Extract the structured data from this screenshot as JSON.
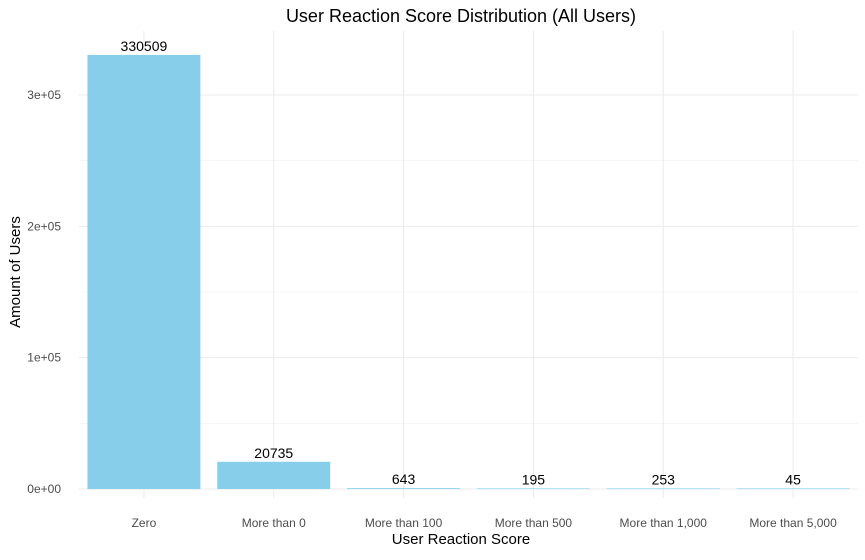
{
  "chart_data": {
    "type": "bar",
    "title": "User Reaction Score Distribution (All Users)",
    "xlabel": "User Reaction Score",
    "ylabel": "Amount of Users",
    "categories": [
      "Zero",
      "More than 0",
      "More than 100",
      "More than 500",
      "More than 1,000",
      "More than 5,000"
    ],
    "values": [
      330509,
      20735,
      643,
      195,
      253,
      45
    ],
    "data_labels": [
      "330509",
      "20735",
      "643",
      "195",
      "253",
      "45"
    ],
    "ylim": [
      0,
      347000
    ],
    "y_ticks": [
      0,
      100000,
      200000,
      300000
    ],
    "y_tick_labels": [
      "0e+00",
      "1e+05",
      "2e+05",
      "3e+05"
    ],
    "bar_color": "#87CEEB",
    "grid": true,
    "legend": "none"
  }
}
